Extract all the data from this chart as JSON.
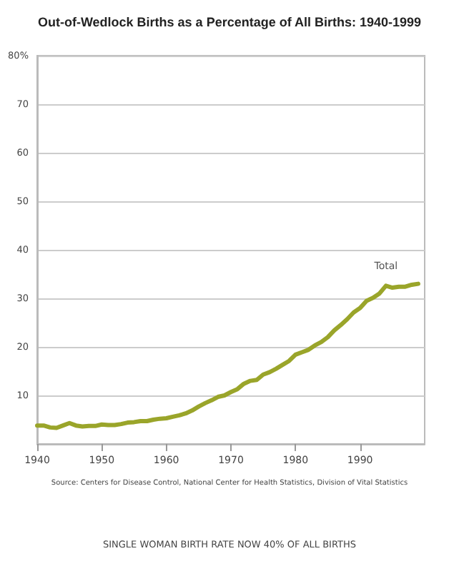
{
  "chart_data": {
    "type": "line",
    "title": "Out-of-Wedlock Births as a Percentage of All Births: 1940-1999",
    "x": [
      1940,
      1941,
      1942,
      1943,
      1944,
      1945,
      1946,
      1947,
      1948,
      1949,
      1950,
      1951,
      1952,
      1953,
      1954,
      1955,
      1956,
      1957,
      1958,
      1959,
      1960,
      1961,
      1962,
      1963,
      1964,
      1965,
      1966,
      1967,
      1968,
      1969,
      1970,
      1971,
      1972,
      1973,
      1974,
      1975,
      1976,
      1977,
      1978,
      1979,
      1980,
      1981,
      1982,
      1983,
      1984,
      1985,
      1986,
      1987,
      1988,
      1989,
      1990,
      1991,
      1992,
      1993,
      1994,
      1995,
      1996,
      1997,
      1998,
      1999
    ],
    "series": [
      {
        "name": "Total",
        "color": "#9aa52a",
        "values": [
          3.8,
          3.8,
          3.4,
          3.3,
          3.8,
          4.3,
          3.8,
          3.6,
          3.7,
          3.7,
          4.0,
          3.9,
          3.9,
          4.1,
          4.4,
          4.5,
          4.7,
          4.7,
          5.0,
          5.2,
          5.3,
          5.6,
          5.9,
          6.3,
          6.9,
          7.7,
          8.4,
          9.0,
          9.7,
          10.0,
          10.7,
          11.3,
          12.4,
          13.0,
          13.2,
          14.3,
          14.8,
          15.5,
          16.3,
          17.1,
          18.4,
          18.9,
          19.4,
          20.3,
          21.0,
          22.0,
          23.4,
          24.5,
          25.7,
          27.1,
          28.0,
          29.5,
          30.1,
          31.0,
          32.6,
          32.2,
          32.4,
          32.4,
          32.8,
          33.0
        ]
      }
    ],
    "xlim": [
      1940,
      2000
    ],
    "xticks": [
      1940,
      1950,
      1960,
      1970,
      1980,
      1990
    ],
    "ylim": [
      0,
      80
    ],
    "yticks": [
      10,
      20,
      30,
      40,
      50,
      60,
      70,
      {
        "value": 80,
        "label": "80%"
      }
    ],
    "grid": "y",
    "legend": false,
    "marker": "none",
    "line_style": "solid",
    "annotations": [
      "Source: Centers for Disease Control, National Center for Health Statistics, Division of Vital Statistics",
      "SINGLE WOMAN BIRTH RATE NOW 40% OF ALL BIRTHS"
    ]
  }
}
